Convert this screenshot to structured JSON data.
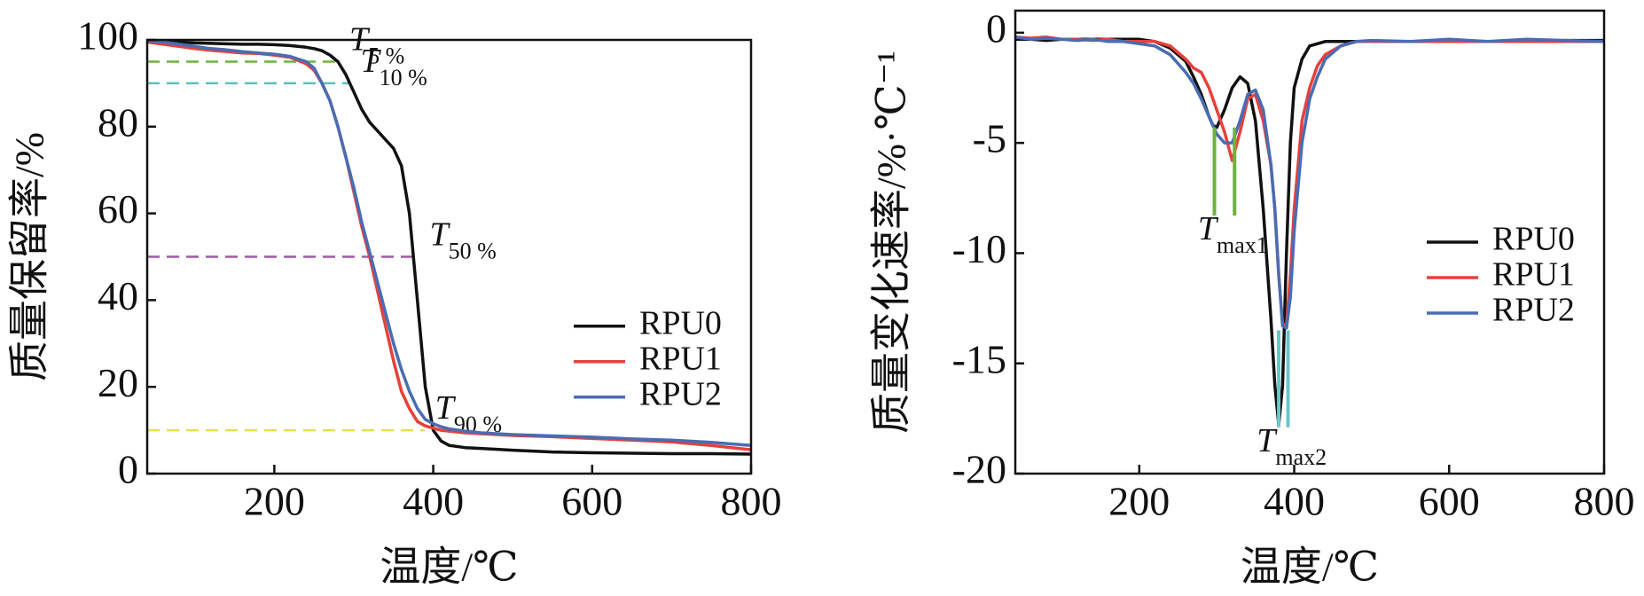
{
  "chart_data": [
    {
      "type": "line",
      "xlabel": "温度/℃",
      "ylabel": "质量保留率/%",
      "xlim": [
        40,
        800
      ],
      "xticks": [
        200,
        400,
        600,
        800
      ],
      "ylim": [
        0,
        100
      ],
      "yticks": [
        0,
        20,
        40,
        60,
        80,
        100
      ],
      "legend": "right",
      "x": [
        40,
        60,
        80,
        100,
        120,
        140,
        160,
        180,
        200,
        220,
        240,
        250,
        260,
        270,
        280,
        290,
        300,
        310,
        320,
        330,
        340,
        350,
        360,
        370,
        380,
        390,
        400,
        410,
        420,
        440,
        460,
        500,
        550,
        600,
        650,
        700,
        750,
        800
      ],
      "series": [
        {
          "name": "RPU0",
          "color": "#111111",
          "values": [
            99.8,
            99.7,
            99.5,
            99.3,
            99.2,
            99.1,
            99,
            99,
            98.9,
            98.7,
            98.3,
            98,
            97.5,
            96.5,
            95,
            92,
            88,
            84,
            81,
            79,
            77,
            75,
            71,
            60,
            40,
            20,
            10,
            7.5,
            6.5,
            6,
            5.8,
            5.4,
            5,
            4.8,
            4.7,
            4.6,
            4.6,
            4.5
          ]
        },
        {
          "name": "RPU1",
          "color": "#e8403a",
          "values": [
            99.5,
            99,
            98.5,
            98,
            97.6,
            97.3,
            97,
            96.9,
            96.5,
            96,
            94.5,
            93,
            90,
            86,
            80,
            73,
            65,
            57,
            50,
            42,
            34,
            26,
            19,
            15,
            12,
            11,
            10.5,
            10,
            9.8,
            9.4,
            9.2,
            8.8,
            8.5,
            8.1,
            7.7,
            7.3,
            6.5,
            5.5
          ]
        },
        {
          "name": "RPU2",
          "color": "#4a6cb3",
          "values": [
            99.8,
            99.5,
            99,
            98.5,
            98,
            97.7,
            97.3,
            97,
            96.7,
            96.2,
            95,
            93.5,
            90,
            86,
            80,
            73,
            66,
            58,
            51,
            44,
            37,
            30,
            24,
            19,
            15,
            12.5,
            11.5,
            10.8,
            10.3,
            9.8,
            9.4,
            9,
            8.7,
            8.4,
            8,
            7.7,
            7.2,
            6.5
          ]
        }
      ],
      "reference_lines": [
        {
          "label": "T",
          "subscript": "5 %",
          "y": 95,
          "x_end": 281,
          "color": "#6db33f"
        },
        {
          "label": "T",
          "subscript": "10 %",
          "y": 90,
          "x_end": 295,
          "color": "#5bc0c0"
        },
        {
          "label": "T",
          "subscript": "50 %",
          "y": 50,
          "x_end": 382,
          "color": "#a05aa6"
        },
        {
          "label": "T",
          "subscript": "90 %",
          "y": 10,
          "x_end": 389,
          "color": "#e6e04a"
        }
      ]
    },
    {
      "type": "line",
      "xlabel": "温度/℃",
      "ylabel": "质量变化速率/%·℃⁻¹",
      "xlim": [
        40,
        800
      ],
      "xticks": [
        200,
        400,
        600,
        800
      ],
      "ylim": [
        -20,
        1
      ],
      "yticks": [
        -20,
        -15,
        -10,
        -5,
        0
      ],
      "legend": "right",
      "x": [
        40,
        60,
        80,
        100,
        120,
        140,
        160,
        180,
        200,
        220,
        240,
        260,
        270,
        280,
        290,
        295,
        300,
        310,
        320,
        330,
        340,
        350,
        360,
        370,
        375,
        380,
        385,
        390,
        395,
        400,
        410,
        420,
        430,
        440,
        460,
        480,
        500,
        550,
        600,
        650,
        700,
        750,
        800
      ],
      "series": [
        {
          "name": "RPU0",
          "color": "#111111",
          "values": [
            -0.3,
            -0.3,
            -0.35,
            -0.3,
            -0.3,
            -0.3,
            -0.3,
            -0.3,
            -0.3,
            -0.4,
            -0.7,
            -1.3,
            -2,
            -2.8,
            -3.8,
            -4.2,
            -4.3,
            -3.5,
            -2.5,
            -2,
            -2.3,
            -4,
            -8,
            -13,
            -16,
            -17.8,
            -16,
            -10,
            -5,
            -2.5,
            -1.2,
            -0.6,
            -0.5,
            -0.4,
            -0.4,
            -0.4,
            -0.4,
            -0.4,
            -0.4,
            -0.4,
            -0.4,
            -0.35,
            -0.35
          ]
        },
        {
          "name": "RPU1",
          "color": "#e8403a",
          "values": [
            -0.2,
            -0.25,
            -0.2,
            -0.3,
            -0.3,
            -0.35,
            -0.3,
            -0.4,
            -0.4,
            -0.4,
            -0.6,
            -1.2,
            -1.6,
            -1.8,
            -2.5,
            -3,
            -3.5,
            -4.5,
            -5.8,
            -4.5,
            -3,
            -2.8,
            -4,
            -6,
            -8,
            -11,
            -13.2,
            -13.3,
            -11,
            -8,
            -4,
            -2.5,
            -1.5,
            -1,
            -0.6,
            -0.4,
            -0.4,
            -0.4,
            -0.4,
            -0.4,
            -0.4,
            -0.4,
            -0.4
          ]
        },
        {
          "name": "RPU2",
          "color": "#4a6cb3",
          "values": [
            -0.2,
            -0.3,
            -0.25,
            -0.3,
            -0.35,
            -0.3,
            -0.4,
            -0.4,
            -0.5,
            -0.6,
            -1,
            -1.8,
            -2.3,
            -3,
            -3.8,
            -4.2,
            -4.6,
            -5,
            -5,
            -4,
            -2.8,
            -2.6,
            -3.5,
            -6,
            -8,
            -11,
            -13.3,
            -13.4,
            -12,
            -9,
            -5,
            -3,
            -2,
            -1.2,
            -0.6,
            -0.4,
            -0.35,
            -0.4,
            -0.3,
            -0.4,
            -0.3,
            -0.35,
            -0.4
          ]
        }
      ],
      "markers": [
        {
          "label": "T",
          "subscript": "max1",
          "color": "#6db33f",
          "x": [
            297,
            323
          ],
          "y": [
            -4.3,
            -8.3
          ]
        },
        {
          "label": "T",
          "subscript": "max2",
          "color": "#6cc5c8",
          "x": [
            380,
            392
          ],
          "y": [
            -13.5,
            -17.9
          ]
        }
      ]
    }
  ]
}
